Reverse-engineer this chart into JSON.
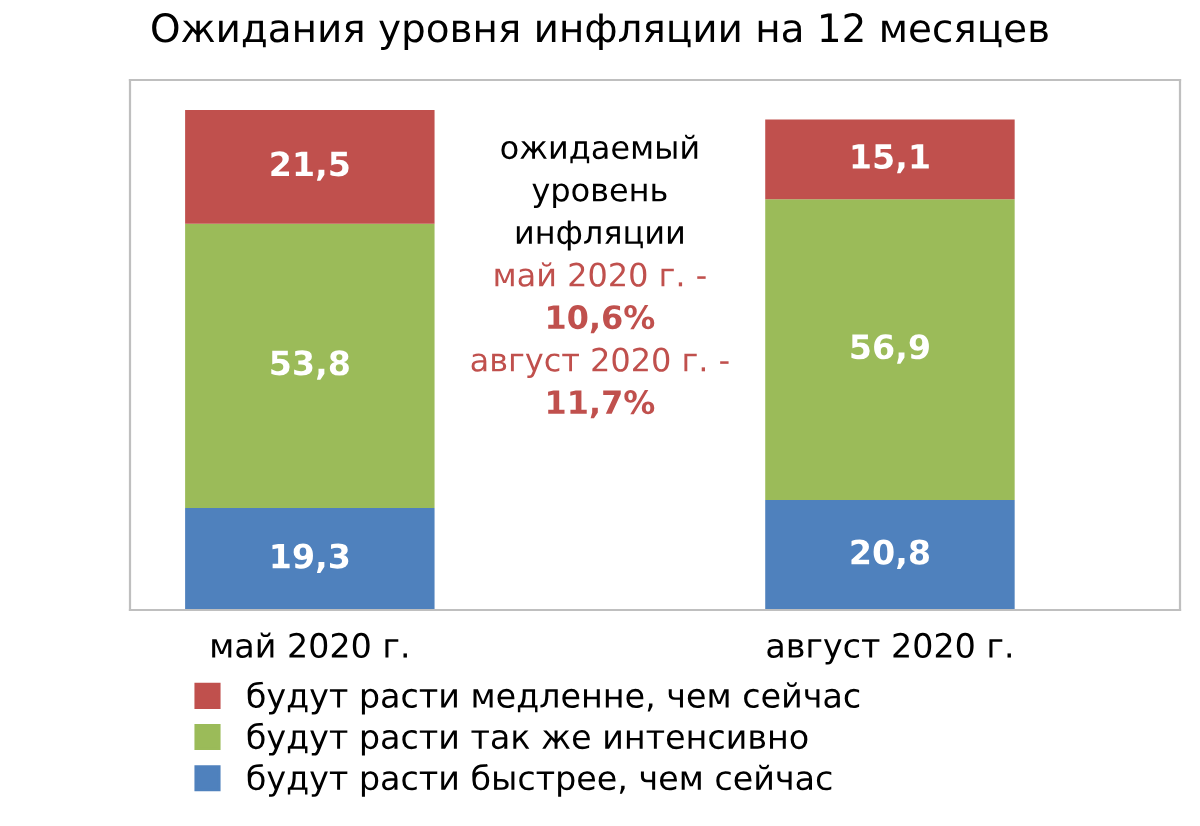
{
  "chart_data": {
    "type": "bar",
    "title": "Ожидания уровня инфляции на 12 месяцев",
    "categories": [
      "май 2020 г.",
      "август 2020 г."
    ],
    "stacked": true,
    "legend": "bottom",
    "grid": false,
    "series": [
      {
        "name": "будут расти быстрее, чем сейчас",
        "color": "#4f81bd",
        "values": [
          19.3,
          20.8
        ],
        "value_labels": [
          "19,3",
          "20,8"
        ]
      },
      {
        "name": "будут расти так же интенсивно",
        "color": "#9bbb59",
        "values": [
          53.8,
          56.9
        ],
        "value_labels": [
          "53,8",
          "56,9"
        ]
      },
      {
        "name": "будут расти медленне, чем сейчас",
        "color": "#c0504d",
        "values": [
          21.5,
          15.1
        ],
        "value_labels": [
          "21,5",
          "15,1"
        ]
      }
    ],
    "annotations": [
      "ожидаемый",
      "уровень",
      "инфляции",
      "май 2020 г. -",
      "10,6%",
      "август 2020 г. -",
      "11,7%"
    ]
  }
}
